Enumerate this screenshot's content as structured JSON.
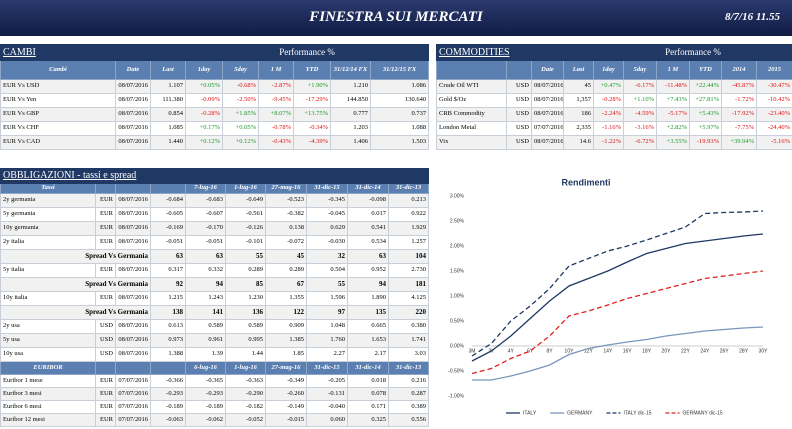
{
  "header": {
    "title": "FINESTRA SUI MERCATI",
    "date": "8/7/16 11.55"
  },
  "cambi": {
    "title": "CAMBI",
    "group": "Performance %",
    "columns": [
      "Cambi",
      "Date",
      "Last",
      "1day",
      "5day",
      "1 M",
      "YTD",
      "31/12/14 FX",
      "31/12/15 FX"
    ],
    "rows": [
      [
        "EUR Vs USD",
        "08/07/2016",
        "1.107",
        "+0.05%",
        "-0.68%",
        "-2.87%",
        "+1.90%",
        "1.210",
        "1.086"
      ],
      [
        "EUR Vs Yen",
        "08/07/2016",
        "111.380",
        "-0.09%",
        "-2.50%",
        "-9.45%",
        "-17.29%",
        "144.850",
        "130.640"
      ],
      [
        "EUR Vs GBP",
        "08/07/2016",
        "0.854",
        "-0.28%",
        "+1.85%",
        "+8.07%",
        "+13.75%",
        "0.777",
        "0.737"
      ],
      [
        "EUR Vs CHF",
        "08/07/2016",
        "1.085",
        "+0.17%",
        "+0.05%",
        "-0.78%",
        "-0.34%",
        "1.203",
        "1.088"
      ],
      [
        "EUR Vs CAD",
        "08/07/2016",
        "1.440",
        "+0.12%",
        "+0.12%",
        "-0.43%",
        "-4.39%",
        "1.406",
        "1.503"
      ]
    ]
  },
  "commodities": {
    "title": "COMMODITIES",
    "group": "Performance %",
    "columns": [
      "Date",
      "Last",
      "1day",
      "5day",
      "1 M",
      "YTD",
      "2014",
      "2015"
    ],
    "rows": [
      [
        "Crude Oil WTI",
        "USD",
        "08/07/2016",
        "45",
        "+0.47%",
        "-6.17%",
        "-11.48%",
        "+22.44%",
        "-45.87%",
        "-30.47%"
      ],
      [
        "Gold $/Oz",
        "USD",
        "08/07/2016",
        "1,357",
        "-0.28%",
        "+1.10%",
        "+7.43%",
        "+27.81%",
        "-1.72%",
        "-10.42%"
      ],
      [
        "CRB Commodity",
        "USD",
        "08/07/2016",
        "186",
        "-2.24%",
        "-4.59%",
        "-5.17%",
        "+5.43%",
        "-17.92%",
        "-23.40%"
      ],
      [
        "London Metal",
        "USD",
        "07/07/2016",
        "2,335",
        "-1.16%",
        "-3.16%",
        "+2.82%",
        "+5.97%",
        "-7.75%",
        "-24.40%"
      ],
      [
        "Vix",
        "USD",
        "08/07/2016",
        "14.6",
        "-1.22%",
        "-6.72%",
        "+3.55%",
        "-19.93%",
        "+39.94%",
        "-5.16%"
      ]
    ]
  },
  "obbligazioni": {
    "title": "OBBLIGAZIONI - tassi e spread",
    "columns": [
      "Tassi",
      "7-lug-16",
      "1-lug-16",
      "27-mag-16",
      "31-dic-15",
      "31-dic-14",
      "31-dic-13"
    ],
    "rows": [
      [
        "2y germania",
        "EUR",
        "08/07/2016",
        "-0.684",
        "-0.683",
        "-0.649",
        "-0.523",
        "-0.345",
        "-0.098",
        "0.213"
      ],
      [
        "5y germania",
        "EUR",
        "08/07/2016",
        "-0.605",
        "-0.607",
        "-0.561",
        "-0.382",
        "-0.045",
        "0.017",
        "0.922"
      ],
      [
        "10y germania",
        "EUR",
        "08/07/2016",
        "-0.169",
        "-0.170",
        "-0.126",
        "0.138",
        "0.629",
        "0.541",
        "1.929"
      ],
      [
        "2y italia",
        "EUR",
        "08/07/2016",
        "-0.051",
        "-0.051",
        "-0.101",
        "-0.072",
        "-0.030",
        "0.534",
        "1.257"
      ],
      [
        "Spread Vs Germania",
        "63",
        "63",
        "55",
        "45",
        "32",
        "63",
        "104"
      ],
      [
        "5y italia",
        "EUR",
        "08/07/2016",
        "0.317",
        "0.332",
        "0.289",
        "0.289",
        "0.504",
        "0.952",
        "2.730"
      ],
      [
        "Spread Vs Germania",
        "92",
        "94",
        "85",
        "67",
        "55",
        "94",
        "181"
      ],
      [
        "10y italia",
        "EUR",
        "08/07/2016",
        "1.215",
        "1.243",
        "1.230",
        "1.355",
        "1.596",
        "1.890",
        "4.125"
      ],
      [
        "Spread Vs Germania",
        "138",
        "141",
        "136",
        "122",
        "97",
        "135",
        "220"
      ],
      [
        "2y usa",
        "USD",
        "08/07/2016",
        "0.613",
        "0.589",
        "0.589",
        "0.909",
        "1.048",
        "0.665",
        "0.380"
      ],
      [
        "5y usa",
        "USD",
        "08/07/2016",
        "0.973",
        "0.961",
        "0.995",
        "1.385",
        "1.760",
        "1.653",
        "1.741"
      ],
      [
        "10y usa",
        "USD",
        "08/07/2016",
        "1.388",
        "1.39",
        "1.44",
        "1.85",
        "2.27",
        "2.17",
        "3.03"
      ]
    ],
    "euribor": {
      "columns": [
        "EURIBOR",
        "6-lug-16",
        "1-lug-16",
        "27-mag-16",
        "31-dic-15",
        "31-dic-14",
        "31-dic-13"
      ],
      "rows": [
        [
          "Euribor 1 mese",
          "EUR",
          "07/07/2016",
          "-0.366",
          "-0.365",
          "-0.363",
          "-0.349",
          "-0.205",
          "0.018",
          "0.216"
        ],
        [
          "Euribor 3 mesi",
          "EUR",
          "07/07/2016",
          "-0.293",
          "-0.293",
          "-0.290",
          "-0.260",
          "-0.131",
          "0.078",
          "0.287"
        ],
        [
          "Euribor 6 mesi",
          "EUR",
          "07/07/2016",
          "-0.189",
          "-0.189",
          "-0.182",
          "-0.149",
          "-0.040",
          "0.171",
          "0.389"
        ],
        [
          "Euribor 12 mesi",
          "EUR",
          "07/07/2016",
          "-0.063",
          "-0.062",
          "-0.052",
          "-0.015",
          "0.060",
          "0.325",
          "0.556"
        ]
      ]
    }
  },
  "chart_data": {
    "type": "line",
    "title": "Rendimenti",
    "categories": [
      "3M",
      "2Y",
      "4Y",
      "6Y",
      "8Y",
      "10Y",
      "12Y",
      "14Y",
      "16Y",
      "18Y",
      "20Y",
      "22Y",
      "24Y",
      "26Y",
      "28Y",
      "30Y"
    ],
    "ylim": [
      -1,
      3
    ],
    "yticks": [
      {
        "value": -1,
        "label": "-1.00%"
      },
      {
        "value": -0.5,
        "label": "-0.50%"
      },
      {
        "value": 0,
        "label": "0.00%"
      },
      {
        "value": 0.5,
        "label": "0.50%"
      },
      {
        "value": 1,
        "label": "1.00%"
      },
      {
        "value": 1.5,
        "label": "1.50%"
      },
      {
        "value": 2,
        "label": "2.00%"
      },
      {
        "value": 2.5,
        "label": "2.50%"
      },
      {
        "value": 3,
        "label": "3.00%"
      }
    ],
    "series": [
      {
        "name": "ITALY",
        "color": "#1f3864",
        "style": "solid",
        "values": [
          -0.3,
          -0.1,
          0.2,
          0.55,
          0.9,
          1.2,
          1.35,
          1.5,
          1.68,
          1.85,
          1.95,
          2.05,
          2.1,
          2.15,
          2.2,
          2.24
        ]
      },
      {
        "name": "GERMANY",
        "color": "#7a96bd",
        "style": "solid",
        "values": [
          -0.68,
          -0.68,
          -0.6,
          -0.5,
          -0.38,
          -0.17,
          -0.05,
          0.02,
          0.08,
          0.13,
          0.2,
          0.25,
          0.3,
          0.33,
          0.36,
          0.38
        ]
      },
      {
        "name": "ITALY dic-15",
        "color": "#1f3864",
        "style": "dashed",
        "values": [
          -0.2,
          0.05,
          0.5,
          0.8,
          1.15,
          1.6,
          1.75,
          1.9,
          2.0,
          2.12,
          2.25,
          2.38,
          2.65,
          2.67,
          2.68,
          2.7
        ]
      },
      {
        "name": "GERMANY dic-15",
        "color": "#e02020",
        "style": "dashed",
        "values": [
          -0.55,
          -0.45,
          -0.25,
          -0.1,
          0.2,
          0.6,
          0.7,
          0.82,
          0.95,
          1.05,
          1.15,
          1.25,
          1.35,
          1.4,
          1.45,
          1.5
        ]
      }
    ]
  }
}
